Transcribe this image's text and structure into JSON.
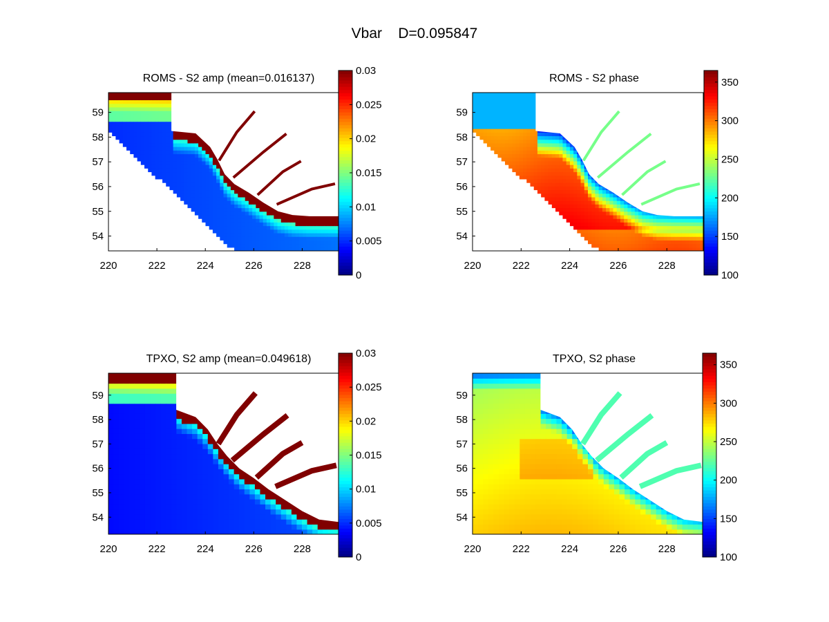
{
  "figure": {
    "title": "Vbar    D=0.095847"
  },
  "chart_data": [
    {
      "type": "heatmap",
      "title": "ROMS - S2 amp (mean=0.016137)",
      "field": "amplitude",
      "source": "roms",
      "xlim": [
        220,
        229.5
      ],
      "ylim": [
        53.4,
        59.8
      ],
      "xticks": [
        "220",
        "222",
        "224",
        "226",
        "228"
      ],
      "yticks": [
        "54",
        "55",
        "56",
        "57",
        "58",
        "59"
      ],
      "colorbar": {
        "min": 0,
        "max": 0.03,
        "ticks": [
          "0",
          "0.005",
          "0.01",
          "0.015",
          "0.02",
          "0.025",
          "0.03"
        ]
      },
      "colormap": "jet"
    },
    {
      "type": "heatmap",
      "title": "ROMS - S2 phase",
      "field": "phase",
      "source": "roms",
      "xlim": [
        220,
        229.5
      ],
      "ylim": [
        53.4,
        59.8
      ],
      "xticks": [
        "220",
        "222",
        "224",
        "226",
        "228"
      ],
      "yticks": [
        "54",
        "55",
        "56",
        "57",
        "58",
        "59"
      ],
      "colorbar": {
        "min": 100,
        "max": 365,
        "ticks": [
          "100",
          "150",
          "200",
          "250",
          "300",
          "350"
        ]
      },
      "colormap": "jet"
    },
    {
      "type": "heatmap",
      "title": "TPXO, S2 amp (mean=0.049618)",
      "field": "amplitude",
      "source": "tpxo",
      "xlim": [
        220,
        229.5
      ],
      "ylim": [
        53.3,
        59.9
      ],
      "xticks": [
        "220",
        "222",
        "224",
        "226",
        "228",
        "230"
      ],
      "yticks": [
        "54",
        "55",
        "56",
        "57",
        "58",
        "59"
      ],
      "colorbar": {
        "min": 0,
        "max": 0.03,
        "ticks": [
          "0",
          "0.005",
          "0.01",
          "0.015",
          "0.02",
          "0.025",
          "0.03"
        ]
      },
      "colormap": "jet"
    },
    {
      "type": "heatmap",
      "title": "TPXO, S2 phase",
      "field": "phase",
      "source": "tpxo",
      "xlim": [
        220,
        229.5
      ],
      "ylim": [
        53.3,
        59.9
      ],
      "xticks": [
        "220",
        "222",
        "224",
        "226",
        "228",
        "230"
      ],
      "yticks": [
        "54",
        "55",
        "56",
        "57",
        "58",
        "59"
      ],
      "colorbar": {
        "min": 100,
        "max": 365,
        "ticks": [
          "100",
          "150",
          "200",
          "250",
          "300",
          "350"
        ]
      },
      "colormap": "jet"
    }
  ]
}
